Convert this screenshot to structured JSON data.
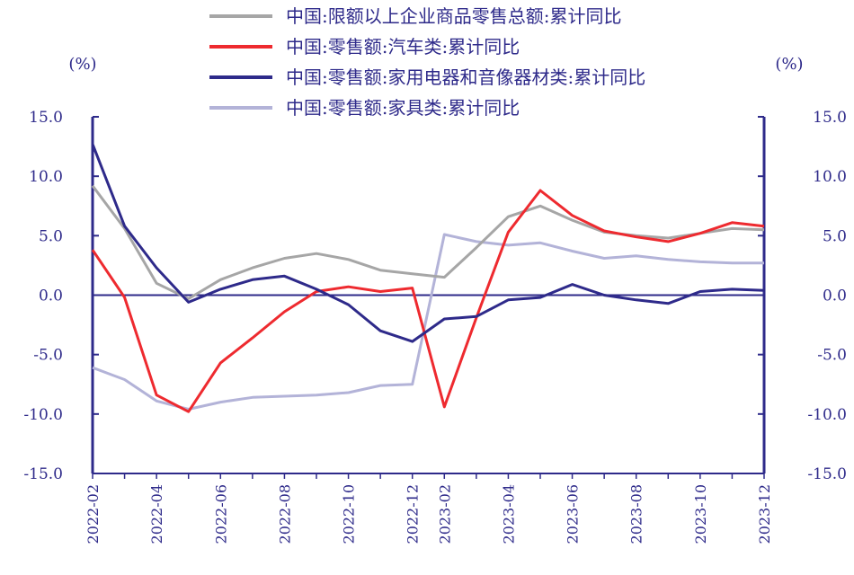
{
  "chart_data": {
    "type": "line",
    "x": [
      "2022-02",
      "2022-03",
      "2022-04",
      "2022-05",
      "2022-06",
      "2022-07",
      "2022-08",
      "2022-09",
      "2022-10",
      "2022-11",
      "2022-12",
      "2023-02",
      "2023-03",
      "2023-04",
      "2023-05",
      "2023-06",
      "2023-07",
      "2023-08",
      "2023-09",
      "2023-10",
      "2023-11",
      "2023-12"
    ],
    "x_tick_labels": [
      "2022-02",
      "2022-04",
      "2022-06",
      "2022-08",
      "2022-10",
      "2022-12",
      "2023-02",
      "2023-04",
      "2023-06",
      "2023-08",
      "2023-10",
      "2023-12"
    ],
    "y_left": {
      "unit": "(%)",
      "range": [
        -15,
        15
      ],
      "ticks": [
        "15.0",
        "10.0",
        "5.0",
        "0.0",
        "-5.0",
        "-10.0",
        "-15.0"
      ],
      "tick_values": [
        15,
        10,
        5,
        0,
        -5,
        -10,
        -15
      ]
    },
    "y_right": {
      "unit": "(%)",
      "range": [
        -15,
        15
      ],
      "ticks": [
        "15.0",
        "10.0",
        "5.0",
        "0.0",
        "-5.0",
        "-10.0",
        "-15.0"
      ],
      "tick_values": [
        15,
        10,
        5,
        0,
        -5,
        -10,
        -15
      ]
    },
    "zero_line": true,
    "grid": false,
    "legend_placement": "top",
    "series": [
      {
        "name": "中国:限额以上企业商品零售总额:累计同比",
        "color": "#a6a6a6",
        "values": [
          9.2,
          5.6,
          1.0,
          -0.3,
          1.3,
          2.3,
          3.1,
          3.5,
          3.0,
          2.1,
          1.8,
          1.5,
          4.0,
          6.6,
          7.5,
          6.3,
          5.3,
          5.0,
          4.8,
          5.2,
          5.6,
          5.5
        ]
      },
      {
        "name": "中国:零售额:汽车类:累计同比",
        "color": "#ee2a2f",
        "values": [
          3.8,
          -0.2,
          -8.4,
          -9.8,
          -5.7,
          -3.6,
          -1.4,
          0.3,
          0.7,
          0.3,
          0.6,
          -9.4,
          -1.9,
          5.3,
          8.8,
          6.7,
          5.4,
          4.9,
          4.5,
          5.2,
          6.1,
          5.8
        ]
      },
      {
        "name": "中国:零售额:家用电器和音像器材类:累计同比",
        "color": "#2e2a8a",
        "values": [
          12.7,
          5.8,
          2.3,
          -0.6,
          0.5,
          1.3,
          1.6,
          0.5,
          -0.8,
          -3.0,
          -3.9,
          -2.0,
          -1.8,
          -0.4,
          -0.2,
          0.9,
          0.0,
          -0.4,
          -0.7,
          0.3,
          0.5,
          0.4
        ]
      },
      {
        "name": "中国:零售额:家具类:累计同比",
        "color": "#b3b3d8",
        "values": [
          -6.1,
          -7.1,
          -8.9,
          -9.6,
          -9.0,
          -8.6,
          -8.5,
          -8.4,
          -8.2,
          -7.6,
          -7.5,
          5.1,
          4.5,
          4.2,
          4.4,
          3.7,
          3.1,
          3.3,
          3.0,
          2.8,
          2.7,
          2.7
        ]
      }
    ]
  }
}
